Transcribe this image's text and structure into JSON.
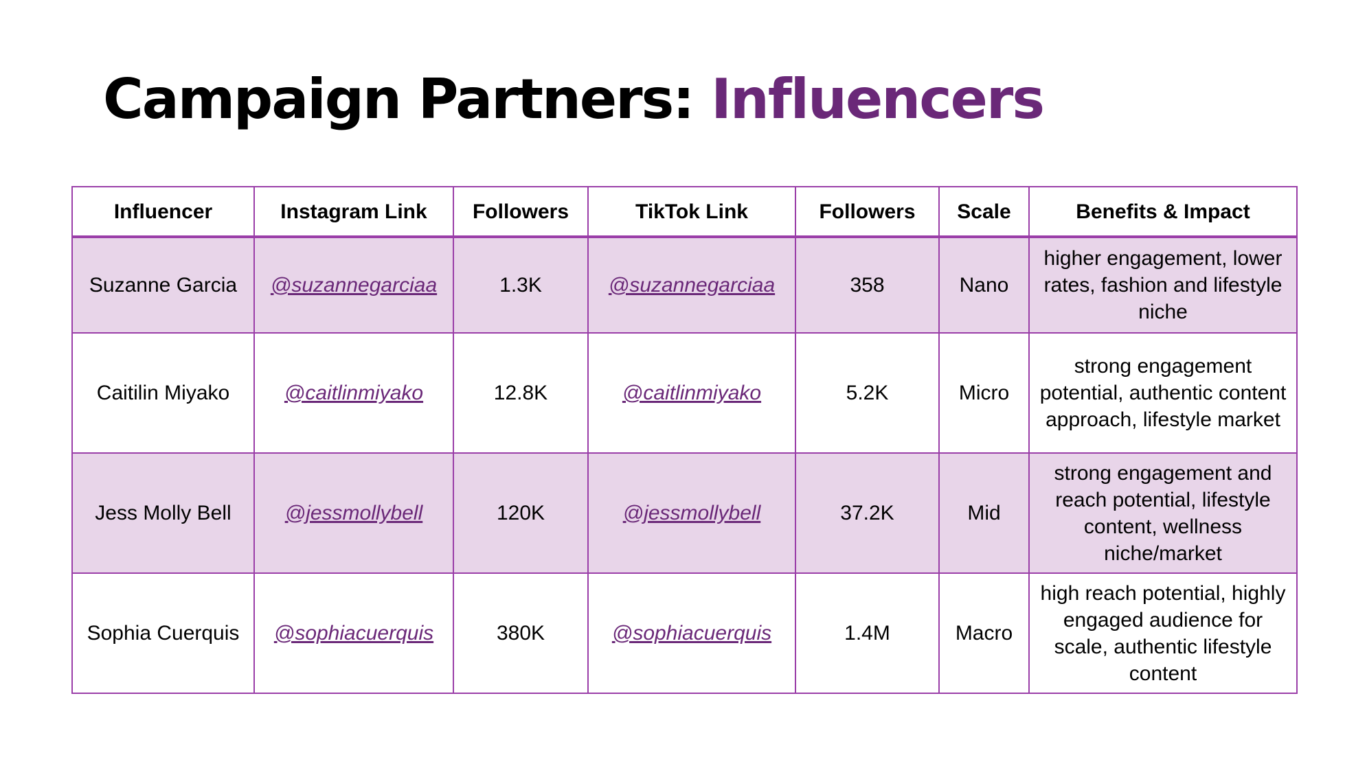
{
  "title": {
    "prefix": "Campaign Partners: ",
    "accent": "Influencers"
  },
  "colors": {
    "accent": "#6a2878",
    "border": "#9a3ea8",
    "row_shade": "#e8d5e9"
  },
  "table": {
    "headers": [
      "Influencer",
      "Instagram Link",
      "Followers",
      "TikTok Link",
      "Followers",
      "Scale",
      "Benefits & Impact"
    ],
    "rows": [
      {
        "influencer": "Suzanne Garcia",
        "instagram": "@suzannegarciaa",
        "instagram_followers": "1.3K",
        "tiktok": "@suzannegarciaa",
        "tiktok_followers": "358",
        "scale": "Nano",
        "benefits": "higher engagement, lower rates, fashion and lifestyle niche"
      },
      {
        "influencer": "Caitilin Miyako",
        "instagram": "@caitlinmiyako",
        "instagram_followers": "12.8K",
        "tiktok": "@caitlinmiyako",
        "tiktok_followers": "5.2K",
        "scale": "Micro",
        "benefits": "strong engagement potential, authentic content approach, lifestyle market"
      },
      {
        "influencer": "Jess Molly Bell",
        "instagram": "@jessmollybell",
        "instagram_followers": "120K",
        "tiktok": "@jessmollybell",
        "tiktok_followers": "37.2K",
        "scale": "Mid",
        "benefits": "strong engagement and reach potential, lifestyle content, wellness niche/market"
      },
      {
        "influencer": "Sophia Cuerquis",
        "instagram": "@sophiacuerquis",
        "instagram_followers": "380K",
        "tiktok": "@sophiacuerquis",
        "tiktok_followers": "1.4M",
        "scale": "Macro",
        "benefits": "high reach potential, highly engaged audience for scale, authentic lifestyle content"
      }
    ]
  }
}
